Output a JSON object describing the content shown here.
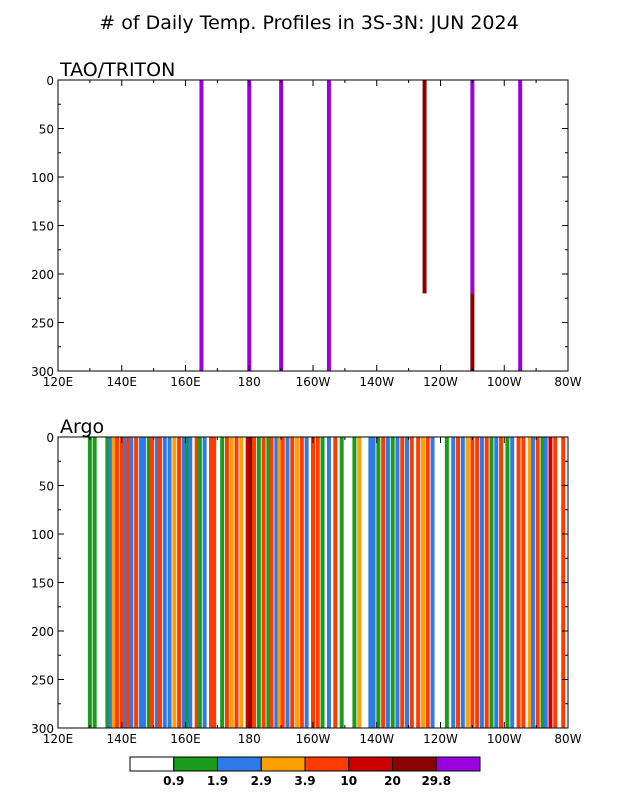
{
  "title": "# of Daily Temp. Profiles in 3S-3N: JUN 2024",
  "colors": {
    "white": "#ffffff",
    "green": "#1a9c1a",
    "blue": "#2e7ae6",
    "orange": "#ffa000",
    "red_orange": "#ff3c00",
    "red": "#cc0000",
    "dark_red": "#8b0000",
    "purple": "#9b00e0"
  },
  "chart_data": [
    {
      "type": "bar",
      "title": "TAO/TRITON",
      "x_range_deg_east": [
        120,
        280
      ],
      "ylim": [
        0,
        300
      ],
      "y_reversed": true,
      "x_tick_labels": [
        "120E",
        "140E",
        "160E",
        "180",
        "160W",
        "140W",
        "120W",
        "100W",
        "80W"
      ],
      "y_tick_labels": [
        "0",
        "50",
        "100",
        "150",
        "200",
        "250",
        "300"
      ],
      "x_ticks_deg_east": [
        120,
        140,
        160,
        180,
        200,
        220,
        240,
        260,
        280
      ],
      "y_ticks": [
        0,
        50,
        100,
        150,
        200,
        250,
        300
      ],
      "bars": [
        {
          "lon_east": 165,
          "segments": [
            {
              "from": 0,
              "to": 300,
              "color": "purple"
            }
          ]
        },
        {
          "lon_east": 180,
          "segments": [
            {
              "from": 0,
              "to": 300,
              "color": "purple"
            }
          ]
        },
        {
          "lon_east": 190,
          "segments": [
            {
              "from": 0,
              "to": 300,
              "color": "purple"
            }
          ]
        },
        {
          "lon_east": 205,
          "segments": [
            {
              "from": 0,
              "to": 300,
              "color": "purple"
            }
          ]
        },
        {
          "lon_east": 235,
          "segments": [
            {
              "from": 0,
              "to": 220,
              "color": "dark_red"
            }
          ]
        },
        {
          "lon_east": 250,
          "segments": [
            {
              "from": 0,
              "to": 220,
              "color": "purple"
            },
            {
              "from": 220,
              "to": 300,
              "color": "dark_red"
            }
          ]
        },
        {
          "lon_east": 265,
          "segments": [
            {
              "from": 0,
              "to": 300,
              "color": "purple"
            }
          ]
        }
      ]
    },
    {
      "type": "bar",
      "title": "Argo",
      "x_range_deg_east": [
        120,
        280
      ],
      "ylim": [
        0,
        300
      ],
      "y_reversed": true,
      "x_tick_labels": [
        "120E",
        "140E",
        "160E",
        "180",
        "160W",
        "140W",
        "120W",
        "100W",
        "80W"
      ],
      "y_tick_labels": [
        "0",
        "50",
        "100",
        "150",
        "200",
        "250",
        "300"
      ],
      "x_ticks_deg_east": [
        120,
        140,
        160,
        180,
        200,
        220,
        240,
        260,
        280
      ],
      "y_ticks": [
        0,
        50,
        100,
        150,
        200,
        250,
        300
      ],
      "bars": [
        {
          "lon_east": 130,
          "color": "green"
        },
        {
          "lon_east": 131.5,
          "color": "green"
        },
        {
          "lon_east": 135.5,
          "color": "green"
        },
        {
          "lon_east": 136.5,
          "color": "blue"
        },
        {
          "lon_east": 137.5,
          "color": "orange"
        },
        {
          "lon_east": 138.5,
          "color": "red_orange"
        },
        {
          "lon_east": 140,
          "color": "red_orange"
        },
        {
          "lon_east": 141,
          "color": "blue"
        },
        {
          "lon_east": 142,
          "color": "red_orange"
        },
        {
          "lon_east": 143,
          "color": "blue"
        },
        {
          "lon_east": 144.5,
          "color": "red_orange"
        },
        {
          "lon_east": 146,
          "color": "blue"
        },
        {
          "lon_east": 147,
          "color": "blue"
        },
        {
          "lon_east": 148.5,
          "color": "green"
        },
        {
          "lon_east": 149.5,
          "color": "red_orange"
        },
        {
          "lon_east": 151,
          "color": "blue"
        },
        {
          "lon_east": 152,
          "color": "red_orange"
        },
        {
          "lon_east": 153.5,
          "color": "blue"
        },
        {
          "lon_east": 155,
          "color": "blue"
        },
        {
          "lon_east": 156.5,
          "color": "orange"
        },
        {
          "lon_east": 158,
          "color": "red_orange"
        },
        {
          "lon_east": 159.5,
          "color": "blue"
        },
        {
          "lon_east": 160.5,
          "color": "green"
        },
        {
          "lon_east": 161.5,
          "color": "blue"
        },
        {
          "lon_east": 163.5,
          "color": "red_orange"
        },
        {
          "lon_east": 164.5,
          "color": "green"
        },
        {
          "lon_east": 166,
          "color": "blue"
        },
        {
          "lon_east": 168,
          "color": "red_orange"
        },
        {
          "lon_east": 169,
          "color": "red_orange"
        },
        {
          "lon_east": 171.5,
          "color": "green"
        },
        {
          "lon_east": 173,
          "color": "red_orange"
        },
        {
          "lon_east": 174.5,
          "color": "orange"
        },
        {
          "lon_east": 176,
          "color": "red_orange"
        },
        {
          "lon_east": 177.5,
          "color": "orange"
        },
        {
          "lon_east": 179.5,
          "color": "red"
        },
        {
          "lon_east": 180.5,
          "color": "dark_red"
        },
        {
          "lon_east": 181.5,
          "color": "red_orange"
        },
        {
          "lon_east": 183,
          "color": "green"
        },
        {
          "lon_east": 184.5,
          "color": "red_orange"
        },
        {
          "lon_east": 186,
          "color": "green"
        },
        {
          "lon_east": 187,
          "color": "red_orange"
        },
        {
          "lon_east": 188.5,
          "color": "blue"
        },
        {
          "lon_east": 189.5,
          "color": "orange"
        },
        {
          "lon_east": 190.5,
          "color": "red_orange"
        },
        {
          "lon_east": 192,
          "color": "blue"
        },
        {
          "lon_east": 193.5,
          "color": "red_orange"
        },
        {
          "lon_east": 195,
          "color": "orange"
        },
        {
          "lon_east": 196.5,
          "color": "red_orange"
        },
        {
          "lon_east": 198,
          "color": "blue"
        },
        {
          "lon_east": 200,
          "color": "red_orange"
        },
        {
          "lon_east": 201.5,
          "color": "red_orange"
        },
        {
          "lon_east": 203,
          "color": "green"
        },
        {
          "lon_east": 205,
          "color": "blue"
        },
        {
          "lon_east": 207,
          "color": "red_orange"
        },
        {
          "lon_east": 209,
          "color": "green"
        },
        {
          "lon_east": 213,
          "color": "green"
        },
        {
          "lon_east": 214.5,
          "color": "orange"
        },
        {
          "lon_east": 218,
          "color": "blue"
        },
        {
          "lon_east": 219,
          "color": "blue"
        },
        {
          "lon_east": 220.5,
          "color": "green"
        },
        {
          "lon_east": 222,
          "color": "red_orange"
        },
        {
          "lon_east": 223.5,
          "color": "blue"
        },
        {
          "lon_east": 225,
          "color": "green"
        },
        {
          "lon_east": 226.5,
          "color": "blue"
        },
        {
          "lon_east": 228,
          "color": "red_orange"
        },
        {
          "lon_east": 229.5,
          "color": "blue"
        },
        {
          "lon_east": 231,
          "color": "red_orange"
        },
        {
          "lon_east": 233,
          "color": "red_orange"
        },
        {
          "lon_east": 234.5,
          "color": "orange"
        },
        {
          "lon_east": 236,
          "color": "red_orange"
        },
        {
          "lon_east": 237.5,
          "color": "blue"
        },
        {
          "lon_east": 242,
          "color": "green"
        },
        {
          "lon_east": 244,
          "color": "blue"
        },
        {
          "lon_east": 245.5,
          "color": "red_orange"
        },
        {
          "lon_east": 247,
          "color": "blue"
        },
        {
          "lon_east": 248.5,
          "color": "orange"
        },
        {
          "lon_east": 250,
          "color": "red_orange"
        },
        {
          "lon_east": 251.5,
          "color": "red_orange"
        },
        {
          "lon_east": 253,
          "color": "blue"
        },
        {
          "lon_east": 254.5,
          "color": "red_orange"
        },
        {
          "lon_east": 256,
          "color": "green"
        },
        {
          "lon_east": 257.5,
          "color": "blue"
        },
        {
          "lon_east": 259,
          "color": "red_orange"
        },
        {
          "lon_east": 261,
          "color": "green"
        },
        {
          "lon_east": 262.5,
          "color": "blue"
        },
        {
          "lon_east": 264.5,
          "color": "red_orange"
        },
        {
          "lon_east": 266,
          "color": "red_orange"
        },
        {
          "lon_east": 268,
          "color": "orange"
        },
        {
          "lon_east": 269,
          "color": "blue"
        },
        {
          "lon_east": 270.5,
          "color": "red_orange"
        },
        {
          "lon_east": 272,
          "color": "green"
        },
        {
          "lon_east": 273,
          "color": "blue"
        },
        {
          "lon_east": 274.5,
          "color": "red"
        },
        {
          "lon_east": 276,
          "color": "red_orange"
        },
        {
          "lon_east": 278.5,
          "color": "red_orange"
        }
      ]
    }
  ],
  "legend": {
    "swatches": [
      "white",
      "green",
      "blue",
      "orange",
      "red_orange",
      "red",
      "dark_red",
      "purple"
    ],
    "labels": [
      "0.9",
      "1.9",
      "2.9",
      "3.9",
      "10",
      "20",
      "29.8"
    ]
  }
}
